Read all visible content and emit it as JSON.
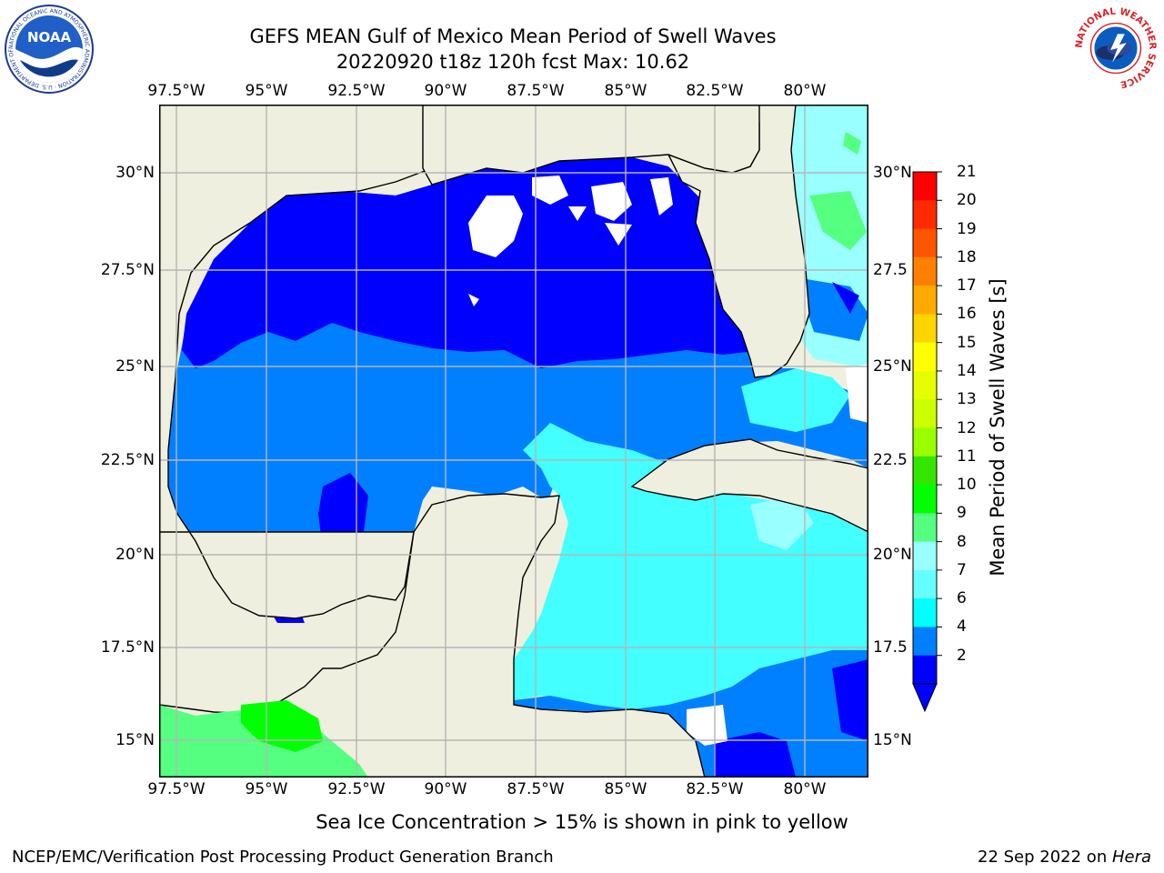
{
  "title": {
    "line1": "GEFS MEAN Gulf of Mexico Mean Period of Swell Waves",
    "line2": "20220920 t18z 120h fcst   Max: 10.62"
  },
  "logos": {
    "noaa_text": "NOAA",
    "noaa_ring": "NATIONAL OCEANIC AND ATMOSPHERIC ADMINISTRATION · U.S. DEPARTMENT OF COMMERCE",
    "nws_ring": "NATIONAL WEATHER SERVICE"
  },
  "map": {
    "lon_ticks": [
      "97.5°W",
      "95°W",
      "92.5°W",
      "90°W",
      "87.5°W",
      "85°W",
      "82.5°W",
      "80°W"
    ],
    "lat_ticks": [
      "30°N",
      "27.5°N",
      "25°N",
      "22.5°N",
      "20°N",
      "17.5°N",
      "15°N"
    ],
    "lat_ticks_right": [
      "30°N",
      "27.5",
      "25°N",
      "22.5",
      "20°N",
      "17.5",
      "15°N"
    ],
    "land_color": "#efefdf",
    "grid": true
  },
  "colorbar": {
    "label": "Mean Period of Swell Waves [s]",
    "ticks": [
      "21",
      "20",
      "19",
      "18",
      "17",
      "16",
      "15",
      "14",
      "13",
      "12",
      "11",
      "10",
      "9",
      "8",
      "7",
      "6",
      "4",
      "2"
    ],
    "colors": [
      "#ff0000",
      "#ff2a00",
      "#ff5500",
      "#ff8000",
      "#ffaa00",
      "#ffd500",
      "#ffff00",
      "#e6ff00",
      "#ccff00",
      "#99ff00",
      "#33e600",
      "#00ff00",
      "#55ff80",
      "#99ffff",
      "#66ffff",
      "#00ffff",
      "#0080ff",
      "#0000ff"
    ],
    "under_color": "#0000ff"
  },
  "fill_colors": {
    "dark_blue": "#0000ff",
    "medium_blue": "#0080ff",
    "light_cyan": "#44ffff",
    "pale_cyan": "#99ffff",
    "light_green": "#55ff80",
    "green": "#00ff00"
  },
  "note": "Sea Ice Concentration > 15% is shown in pink to yellow",
  "footer": {
    "left": "NCEP/EMC/Verification Post Processing Product Generation Branch",
    "date": "22 Sep 2022 on ",
    "machine": "Hera"
  }
}
